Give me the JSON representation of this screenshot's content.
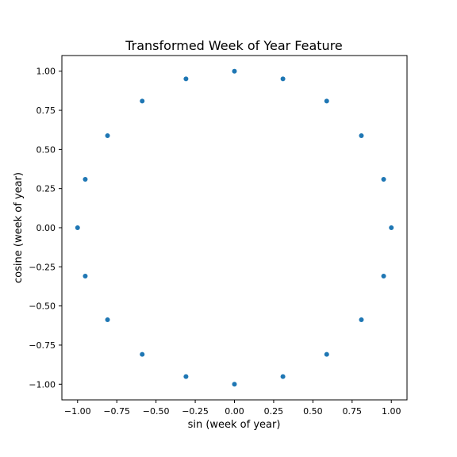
{
  "chart_data": {
    "type": "scatter",
    "title": "Transformed Week of Year Feature",
    "xlabel": "sin (week of year)",
    "ylabel": "cosine (week of year)",
    "xlim": [
      -1.1,
      1.1
    ],
    "ylim": [
      -1.1,
      1.1
    ],
    "xticks": [
      -1.0,
      -0.75,
      -0.5,
      -0.25,
      0.0,
      0.25,
      0.5,
      0.75,
      1.0
    ],
    "yticks": [
      -1.0,
      -0.75,
      -0.5,
      -0.25,
      0.0,
      0.25,
      0.5,
      0.75,
      1.0
    ],
    "xtick_labels": [
      "−1.00",
      "−0.75",
      "−0.50",
      "−0.25",
      "0.00",
      "0.25",
      "0.50",
      "0.75",
      "1.00"
    ],
    "ytick_labels": [
      "−1.00",
      "−0.75",
      "−0.50",
      "−0.25",
      "0.00",
      "0.25",
      "0.50",
      "0.75",
      "1.00"
    ],
    "grid": false,
    "marker_color": "#1f77b4",
    "points": [
      {
        "x": 0.0,
        "y": 1.0
      },
      {
        "x": 0.309,
        "y": 0.951
      },
      {
        "x": 0.588,
        "y": 0.809
      },
      {
        "x": 0.809,
        "y": 0.588
      },
      {
        "x": 0.951,
        "y": 0.309
      },
      {
        "x": 1.0,
        "y": 0.0
      },
      {
        "x": 0.951,
        "y": -0.309
      },
      {
        "x": 0.809,
        "y": -0.588
      },
      {
        "x": 0.588,
        "y": -0.809
      },
      {
        "x": 0.309,
        "y": -0.951
      },
      {
        "x": 0.0,
        "y": -1.0
      },
      {
        "x": -0.309,
        "y": -0.951
      },
      {
        "x": -0.588,
        "y": -0.809
      },
      {
        "x": -0.809,
        "y": -0.588
      },
      {
        "x": -0.951,
        "y": -0.309
      },
      {
        "x": -1.0,
        "y": 0.0
      },
      {
        "x": -0.951,
        "y": 0.309
      },
      {
        "x": -0.809,
        "y": 0.588
      },
      {
        "x": -0.588,
        "y": 0.809
      },
      {
        "x": -0.309,
        "y": 0.951
      }
    ]
  }
}
